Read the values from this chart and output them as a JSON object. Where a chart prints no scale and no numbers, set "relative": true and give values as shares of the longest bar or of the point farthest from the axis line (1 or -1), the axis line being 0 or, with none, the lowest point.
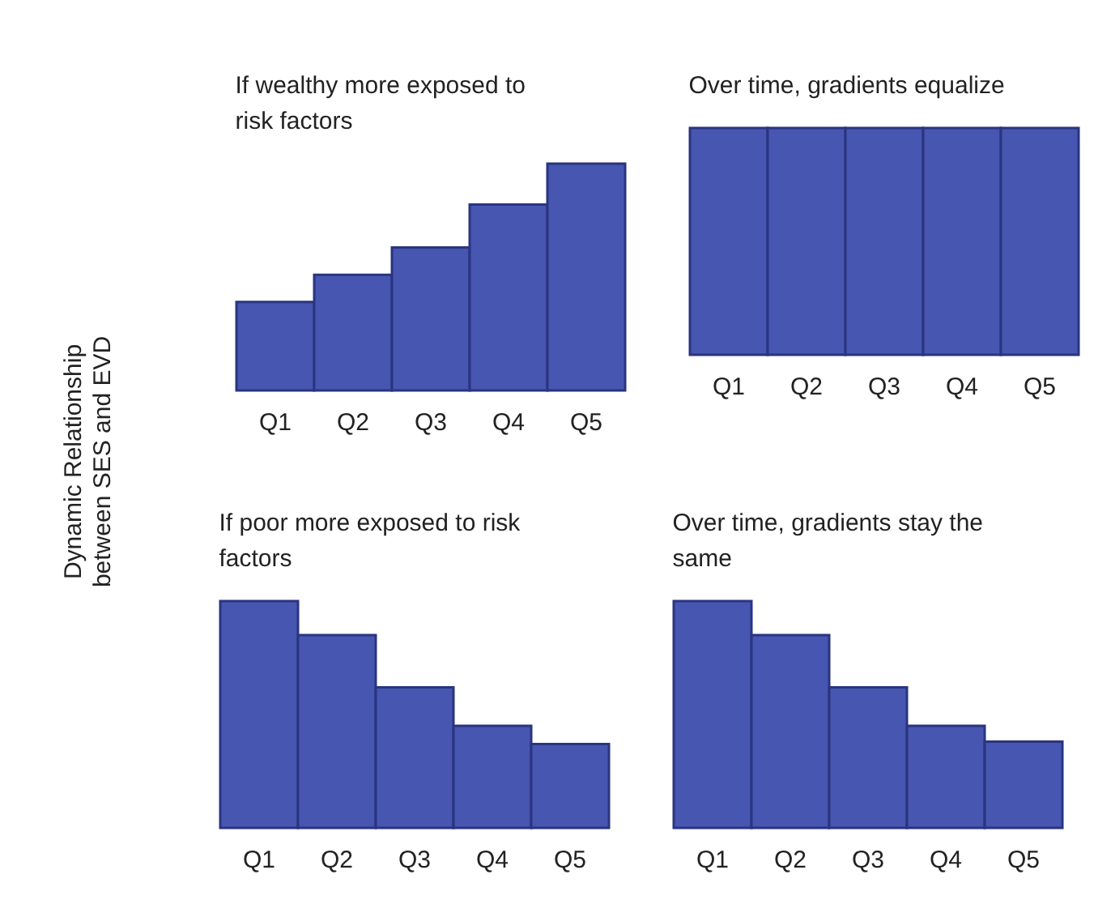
{
  "chart_data": [
    {
      "type": "other",
      "annotations": [
        "Dynamic Relationship between SES and EVD"
      ]
    },
    {
      "type": "bar",
      "title": "If wealthy more exposed to risk factors",
      "categories": [
        "Q1",
        "Q2",
        "Q3",
        "Q4",
        "Q5"
      ],
      "values": [
        0.39,
        0.51,
        0.63,
        0.82,
        1
      ],
      "color": "#4756b0",
      "relative": true
    },
    {
      "type": "bar",
      "title": "Over time, gradients equalize",
      "categories": [
        "Q1",
        "Q2",
        "Q3",
        "Q4",
        "Q5"
      ],
      "values": [
        1,
        1,
        1,
        1,
        1
      ],
      "color": "#4756b0",
      "relative": true
    },
    {
      "type": "bar",
      "title": "If poor more exposed to risk factors",
      "categories": [
        "Q1",
        "Q2",
        "Q3",
        "Q4",
        "Q5"
      ],
      "values": [
        1,
        0.85,
        0.62,
        0.45,
        0.37
      ],
      "color": "#4756b0",
      "relative": true
    },
    {
      "type": "bar",
      "title": "Over time, gradients stay the same",
      "categories": [
        "Q1",
        "Q2",
        "Q3",
        "Q4",
        "Q5"
      ],
      "values": [
        1,
        0.85,
        0.62,
        0.45,
        0.38
      ],
      "color": "#4756b0",
      "relative": true
    }
  ]
}
